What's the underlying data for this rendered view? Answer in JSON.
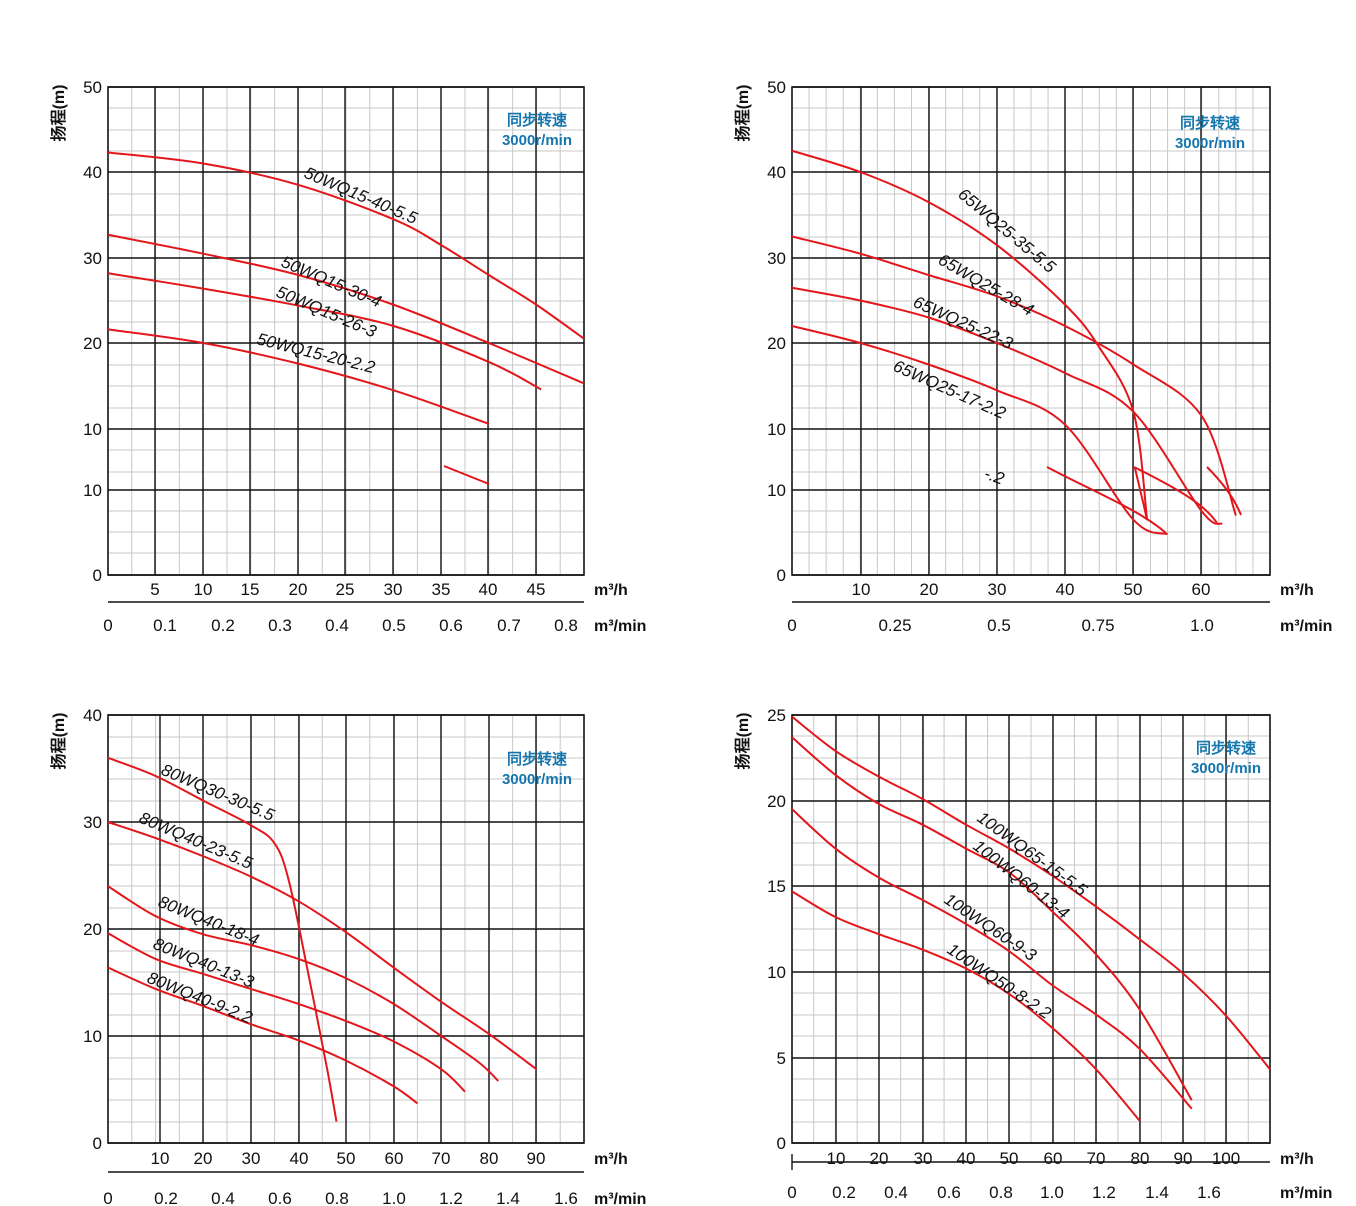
{
  "chart_data": [
    {
      "type": "line",
      "ylabel": "扬程(m)",
      "speed_note": [
        "同步转速",
        "3000r/min"
      ],
      "x_unit_primary": "m³/h",
      "x_unit_secondary": "m³/min",
      "xlim": [
        0,
        50
      ],
      "ylim": [
        0,
        50
      ],
      "yticks": [
        "0",
        "10",
        "10",
        "20",
        "30",
        "40",
        "50"
      ],
      "xticks_primary": [
        "5",
        "10",
        "15",
        "20",
        "25",
        "30",
        "35",
        "40",
        "45"
      ],
      "xticks_secondary": [
        "0",
        "0.1",
        "0.2",
        "0.3",
        "0.4",
        "0.5",
        "0.6",
        "0.7",
        "0.8"
      ],
      "series": [
        {
          "name": "50WQ15-40-5.5",
          "x": [
            0,
            10,
            20,
            30,
            35,
            40,
            45,
            50
          ],
          "y": [
            42.3,
            41.0,
            38.5,
            34.5,
            31.5,
            28.0,
            24.5,
            20.5
          ]
        },
        {
          "name": "50WQ15-30-4",
          "x": [
            0,
            10,
            20,
            30,
            40,
            50
          ],
          "y": [
            32.7,
            30.5,
            28.0,
            24.5,
            20.0,
            15.3
          ]
        },
        {
          "name": "50WQ15-26-3",
          "x": [
            0,
            10,
            20,
            30,
            40,
            45.5
          ],
          "y": [
            28.2,
            26.4,
            24.4,
            22.0,
            17.8,
            14.6
          ]
        },
        {
          "name": "50WQ15-20-2.2",
          "x": [
            0,
            10,
            20,
            30,
            40
          ],
          "y": [
            21.6,
            20.0,
            17.6,
            14.5,
            10.6
          ]
        }
      ]
    },
    {
      "type": "line",
      "ylabel": "扬程(m)",
      "speed_note": [
        "同步转速",
        "3000r/min"
      ],
      "x_unit_primary": "m³/h",
      "x_unit_secondary": "m³/min",
      "xlim": [
        0,
        70
      ],
      "ylim": [
        0,
        50
      ],
      "yticks": [
        "0",
        "10",
        "10",
        "20",
        "30",
        "40",
        "50"
      ],
      "xticks_primary": [
        "10",
        "20",
        "30",
        "40",
        "50",
        "60"
      ],
      "xticks_secondary": [
        "0",
        "0.25",
        "0.5",
        "0.75",
        "1.0"
      ],
      "annotations": [
        "-.2"
      ],
      "series": [
        {
          "name": "65WQ25-35-5.5",
          "x": [
            0,
            10,
            20,
            30,
            40,
            45,
            50,
            52
          ],
          "y": [
            42.5,
            40.0,
            36.5,
            31.5,
            24.5,
            19.5,
            12.0,
            6.5
          ]
        },
        {
          "name": "65WQ25-28-4",
          "x": [
            0,
            10,
            20,
            30,
            40,
            50,
            60,
            65
          ],
          "y": [
            32.5,
            30.5,
            28.0,
            25.5,
            22.0,
            17.5,
            11.5,
            7.0
          ]
        },
        {
          "name": "65WQ25-22-3",
          "x": [
            0,
            10,
            20,
            30,
            40,
            50,
            60,
            63
          ],
          "y": [
            26.5,
            25.0,
            23.0,
            20.0,
            16.5,
            12.0,
            7.5,
            6.0
          ]
        },
        {
          "name": "65WQ25-17-2.2",
          "x": [
            0,
            10,
            20,
            30,
            40,
            50,
            55
          ],
          "y": [
            22.0,
            20.0,
            17.5,
            14.5,
            10.5,
            6.5,
            4.8
          ]
        }
      ]
    },
    {
      "type": "line",
      "ylabel": "扬程(m)",
      "speed_note": [
        "同步转速",
        "3000r/min"
      ],
      "x_unit_primary": "m³/h",
      "x_unit_secondary": "m³/min",
      "xlim": [
        0,
        100
      ],
      "ylim": [
        0,
        40
      ],
      "yticks": [
        "0",
        "10",
        "20",
        "30",
        "40"
      ],
      "xticks_primary": [
        "10",
        "20",
        "30",
        "40",
        "50",
        "60",
        "70",
        "80",
        "90"
      ],
      "xticks_secondary": [
        "0",
        "0.2",
        "0.4",
        "0.6",
        "0.8",
        "1.0",
        "1.2",
        "1.4",
        "1.6"
      ],
      "series": [
        {
          "name": "80WQ30-30-5.5",
          "x": [
            0,
            10,
            20,
            30,
            35,
            38,
            42,
            46,
            48
          ],
          "y": [
            36.0,
            34.3,
            32.0,
            29.7,
            28.0,
            24.5,
            16.0,
            7.0,
            2.0
          ]
        },
        {
          "name": "80WQ40-23-5.5",
          "x": [
            0,
            10,
            20,
            30,
            40,
            50,
            60,
            70,
            80,
            90
          ],
          "y": [
            30.0,
            28.5,
            26.8,
            24.9,
            22.6,
            19.7,
            16.4,
            13.2,
            10.2,
            6.9
          ]
        },
        {
          "name": "80WQ40-18-4",
          "x": [
            0,
            10,
            20,
            30,
            40,
            50,
            60,
            70,
            78,
            82
          ],
          "y": [
            24.0,
            21.2,
            19.5,
            18.5,
            17.2,
            15.4,
            13.0,
            10.0,
            7.5,
            5.8
          ]
        },
        {
          "name": "80WQ40-13-3",
          "x": [
            0,
            10,
            20,
            30,
            40,
            50,
            60,
            70,
            75
          ],
          "y": [
            19.6,
            17.2,
            15.8,
            14.4,
            13.0,
            11.4,
            9.5,
            6.9,
            4.8
          ]
        },
        {
          "name": "80WQ40-9-2.2",
          "x": [
            0,
            10,
            20,
            30,
            40,
            50,
            60,
            65
          ],
          "y": [
            16.4,
            14.4,
            12.8,
            11.1,
            9.6,
            7.7,
            5.3,
            3.7
          ]
        }
      ]
    },
    {
      "type": "line",
      "ylabel": "扬程(m)",
      "speed_note": [
        "同步转速",
        "3000r/min"
      ],
      "x_unit_primary": "m³/h",
      "x_unit_secondary": "m³/min",
      "xlim": [
        0,
        110
      ],
      "ylim": [
        0,
        25
      ],
      "yticks": [
        "0",
        "5",
        "10",
        "15",
        "20",
        "25"
      ],
      "xticks_primary": [
        "10",
        "20",
        "30",
        "40",
        "50",
        "60",
        "70",
        "80",
        "90",
        "100"
      ],
      "xticks_secondary": [
        "0",
        "0.2",
        "0.4",
        "0.6",
        "0.8",
        "1.0",
        "1.2",
        "1.4",
        "1.6"
      ],
      "series": [
        {
          "name": "100WQ65-15-5.5",
          "x": [
            0,
            10,
            20,
            30,
            40,
            50,
            60,
            70,
            80,
            90,
            100,
            110
          ],
          "y": [
            24.9,
            22.9,
            21.4,
            20.1,
            18.6,
            17.2,
            15.6,
            13.8,
            11.9,
            9.9,
            7.4,
            4.3
          ]
        },
        {
          "name": "100WQ60-13-4",
          "x": [
            0,
            10,
            20,
            30,
            40,
            50,
            60,
            70,
            80,
            92
          ],
          "y": [
            23.7,
            21.5,
            19.8,
            18.6,
            17.2,
            15.8,
            13.5,
            11.0,
            7.8,
            2.5
          ]
        },
        {
          "name": "100WQ60-9-3",
          "x": [
            0,
            10,
            20,
            30,
            40,
            50,
            60,
            70,
            80,
            92
          ],
          "y": [
            19.5,
            17.2,
            15.5,
            14.2,
            12.8,
            11.2,
            9.2,
            7.5,
            5.5,
            2.0
          ]
        },
        {
          "name": "100WQ50-8-2.2",
          "x": [
            0,
            10,
            20,
            30,
            40,
            50,
            60,
            70,
            80
          ],
          "y": [
            14.7,
            13.2,
            12.2,
            11.3,
            10.2,
            8.7,
            6.7,
            4.3,
            1.3
          ]
        }
      ]
    }
  ]
}
